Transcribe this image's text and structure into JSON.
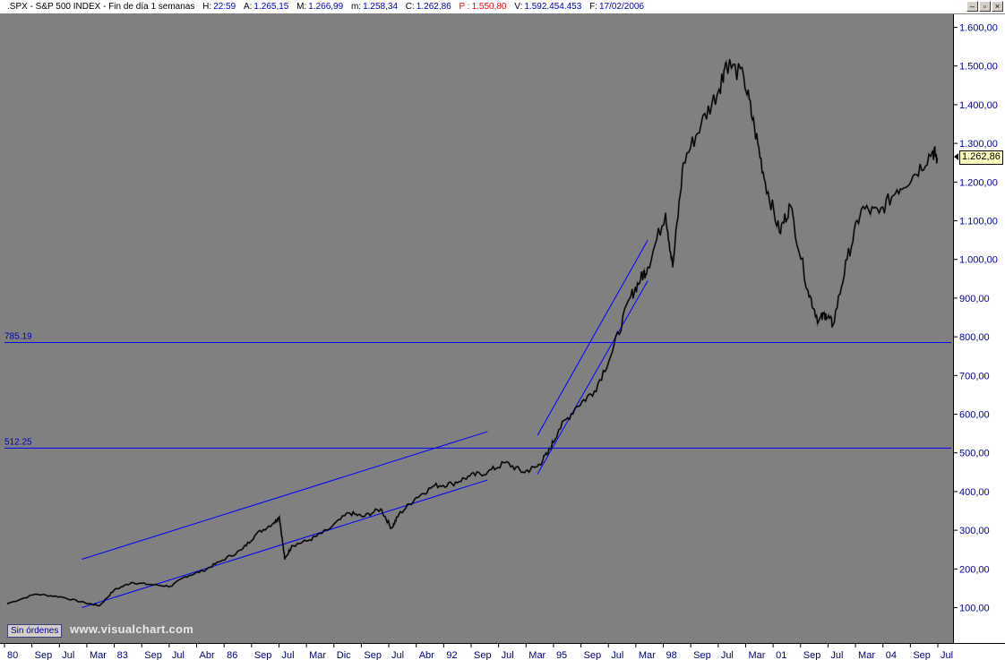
{
  "header": {
    "symbol": ".SPX - S&P 500 INDEX - Fin de día 1 semanas",
    "time_label": "H:",
    "time_value": "22:59",
    "open_label": "A:",
    "open_value": "1.265,15",
    "high_label": "M:",
    "high_value": "1.266,99",
    "low_label": "m:",
    "low_value": "1.258,34",
    "close_label": "C:",
    "close_value": "1.262,86",
    "p_label": "P :",
    "p_value": "1.550,80",
    "volume_label": "V:",
    "volume_value": "1.592.454.453",
    "date_label": "F:",
    "date_value": "17/02/2006"
  },
  "window_buttons": {
    "minimize": "–",
    "restore": "▫",
    "close": "×"
  },
  "orders_button": "Sin órdenes",
  "watermark": "www.visualchart.com",
  "last_price": "1.262,86",
  "colors": {
    "plot_bg": "#808080",
    "price_line": "#000000",
    "trendline": "#0000ff",
    "axis_text": "#0000a0"
  },
  "chart_data": {
    "type": "line",
    "title": ".SPX - S&P 500 INDEX",
    "xlabel": "",
    "ylabel": "",
    "ylim": [
      0,
      1650
    ],
    "x_ticks": [
      "80",
      "Sep",
      "Jul",
      "Mar",
      "83",
      "Sep",
      "Jul",
      "Abr",
      "86",
      "Sep",
      "Jul",
      "Mar",
      "Dic",
      "Sep",
      "Jul",
      "Abr",
      "92",
      "Sep",
      "Jul",
      "Mar",
      "95",
      "Sep",
      "Jul",
      "Mar",
      "98",
      "Sep",
      "Jul",
      "Mar",
      "01",
      "Sep",
      "Jul",
      "Mar",
      "04",
      "Sep",
      "Jul"
    ],
    "y_ticks": [
      "100,00",
      "200,00",
      "300,00",
      "400,00",
      "500,00",
      "600,00",
      "700,00",
      "800,00",
      "900,00",
      "1.000,00",
      "1.100,00",
      "1.200,00",
      "1.300,00",
      "1.400,00",
      "1.500,00",
      "1.600,00"
    ],
    "y_tick_values": [
      100,
      200,
      300,
      400,
      500,
      600,
      700,
      800,
      900,
      1000,
      1100,
      1200,
      1300,
      1400,
      1500,
      1600
    ],
    "series": [
      {
        "x": [
          1980.0,
          1980.8,
          1981.5,
          1982.2,
          1982.6,
          1983.0,
          1983.5,
          1984.0,
          1984.6,
          1985.0,
          1985.5,
          1986.0,
          1986.6,
          1987.0,
          1987.5,
          1987.65,
          1987.8,
          1988.0,
          1988.5,
          1989.0,
          1989.6,
          1990.0,
          1990.5,
          1990.8,
          1991.0,
          1991.5,
          1992.0,
          1992.5,
          1993.0,
          1993.5,
          1994.0,
          1994.5,
          1994.9,
          1995.2,
          1995.5,
          1996.0,
          1996.5,
          1997.0,
          1997.5,
          1997.8,
          1998.0,
          1998.5,
          1998.7,
          1999.0,
          1999.5,
          2000.0,
          2000.2,
          2000.7,
          2001.0,
          2001.3,
          2001.7,
          2002.0,
          2002.5,
          2002.8,
          2003.0,
          2003.2,
          2003.6,
          2004.0,
          2004.5,
          2005.0,
          2005.5,
          2006.0,
          2006.13
        ],
        "values": [
          110,
          135,
          128,
          112,
          105,
          145,
          165,
          160,
          155,
          180,
          195,
          220,
          250,
          290,
          320,
          335,
          225,
          260,
          275,
          300,
          345,
          335,
          355,
          305,
          340,
          385,
          415,
          420,
          440,
          450,
          475,
          450,
          465,
          500,
          560,
          620,
          660,
          760,
          900,
          950,
          980,
          1120,
          980,
          1250,
          1350,
          1440,
          1510,
          1470,
          1340,
          1200,
          1070,
          1140,
          920,
          840,
          860,
          830,
          1000,
          1130,
          1120,
          1180,
          1220,
          1280,
          1262.86
        ]
      }
    ],
    "horizontal_levels": [
      {
        "label": "785.19",
        "value": 785.19
      },
      {
        "label": "512.25",
        "value": 512.25
      }
    ],
    "trendlines": [
      {
        "x": [
          1982.1,
          1993.5
        ],
        "values": [
          225,
          555
        ]
      },
      {
        "x": [
          1982.1,
          1993.5
        ],
        "values": [
          100,
          430
        ]
      },
      {
        "x": [
          1994.9,
          1998.0
        ],
        "values": [
          445,
          945
        ]
      },
      {
        "x": [
          1994.9,
          1998.0
        ],
        "values": [
          545,
          1050
        ]
      }
    ],
    "last_value": 1262.86,
    "grid": false
  }
}
